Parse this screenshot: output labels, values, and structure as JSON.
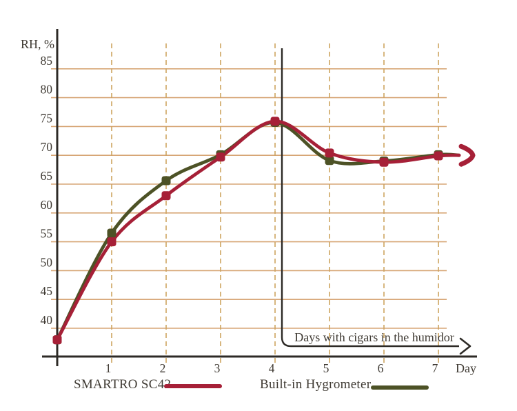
{
  "chart_data": {
    "type": "line",
    "title": "",
    "ylabel": "RH, %",
    "xlabel": "Day",
    "x_days": [
      0,
      1,
      2,
      3,
      4,
      5,
      6,
      7
    ],
    "x_tick_labels": [
      "1",
      "2",
      "3",
      "4",
      "5",
      "6",
      "7"
    ],
    "y_ticks": [
      40,
      45,
      50,
      55,
      60,
      65,
      70,
      75,
      80,
      85
    ],
    "ylim": [
      36,
      88
    ],
    "grid": {
      "horizontal": "solid",
      "vertical": "dashed"
    },
    "legend_position": "bottom",
    "series": [
      {
        "name": "Built-in Hygrometer",
        "color": "#4d5226",
        "marker": "rounded-square",
        "values": [
          38,
          56.5,
          65.6,
          70.1,
          75.7,
          69.1,
          69.0,
          70.1
        ]
      },
      {
        "name": "SMARTRO SC42",
        "color": "#a62037",
        "marker": "rounded-square",
        "values": [
          38,
          55,
          63,
          69.7,
          75.9,
          70.4,
          68.8,
          69.9
        ]
      }
    ],
    "annotation": {
      "text": "Days with cigars in the humidor",
      "at_day": 4,
      "arrow_direction": "right"
    },
    "continuation_arrow": {
      "after_day": 7,
      "value": 70,
      "color": "#a62037"
    }
  },
  "legend": {
    "item1": "SMARTRO SC42",
    "item2": "Built-in Hygrometer"
  },
  "colors": {
    "grid_solid": "#d7a676",
    "grid_dashed": "#cda45f",
    "axis": "#2d2a26",
    "text": "#3f3a33",
    "annotation_line": "#2d2a26"
  }
}
